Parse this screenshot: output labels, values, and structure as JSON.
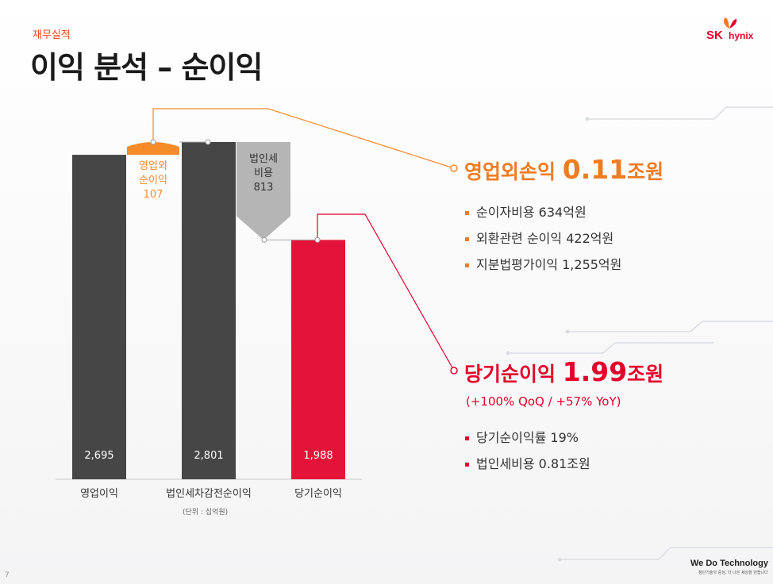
{
  "section": "재무실적",
  "title": "이익 분석 – 순이익",
  "logo": {
    "sk": "SK",
    "hynix": "hynix"
  },
  "chart_data": {
    "type": "bar",
    "subtype": "waterfall",
    "categories": [
      "영업이익",
      "법인세차감전순이익",
      "당기순이익"
    ],
    "values": [
      2695,
      2801,
      1988
    ],
    "value_labels": [
      "2,695",
      "2,801",
      "1,988"
    ],
    "floating": [
      {
        "label_lines": [
          "영업외",
          "순이익",
          "107"
        ],
        "value": 107,
        "from": 2695,
        "to": 2801
      },
      {
        "label_lines": [
          "법인세",
          "비용",
          "813"
        ],
        "value": 813,
        "from": 2801,
        "to": 1988
      }
    ],
    "ylim": [
      0,
      2801
    ],
    "unit": "(단위 : 십억원)",
    "colors": {
      "bar": "#464646",
      "net": "#e4133a",
      "non_op": "#f68b2a",
      "tax": "#b5b5b5"
    }
  },
  "operating": {
    "label": "영업외손익",
    "value": "0.11",
    "unit": "조원",
    "color": "#f07c22",
    "items": [
      "순이자비용 634억원",
      "외환관련 순이익 422억원",
      "지분법평가이익 1,255억원"
    ]
  },
  "net": {
    "label": "당기순이익",
    "value": "1.99",
    "unit": "조원",
    "sub": "(+100% QoQ / +57% YoY)",
    "color": "#e4002b",
    "items": [
      "당기순이익률 19%",
      "법인세비용 0.81조원"
    ]
  },
  "footer": {
    "slogan": "We Do Technology",
    "slogan_sub": "첨단기술의 중심, 더 나은 세상을 만듭니다",
    "page": "7"
  }
}
